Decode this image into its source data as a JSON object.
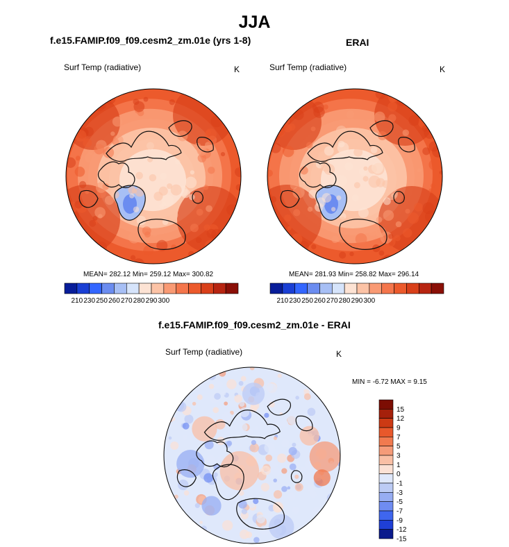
{
  "title": "JJA",
  "colors": {
    "seq": [
      "#081d99",
      "#1a3fd4",
      "#3366ff",
      "#6b8cf0",
      "#a7bff5",
      "#d6e4fb",
      "#fde3d4",
      "#fcc3a6",
      "#f99a74",
      "#f4764c",
      "#ec5a2c",
      "#d9401a",
      "#b72511",
      "#8a0f07"
    ],
    "diff": [
      "#0a1a8c",
      "#1f3fd6",
      "#3f66ef",
      "#6f8cf2",
      "#97adf3",
      "#bccbf5",
      "#dfe8fb",
      "#fbe1d5",
      "#f9bfa5",
      "#f59b79",
      "#f17a4f",
      "#e8582b",
      "#cc3a14",
      "#a5200b",
      "#7c0d03"
    ],
    "coast": "#111111"
  },
  "chart_data": [
    {
      "type": "heatmap",
      "projection": "north-polar-stereographic",
      "panel_title": "f.e15.FAMIP.f09_f09.cesm2_zm.01e (yrs 1-8)",
      "variable": "Surf Temp (radiative)",
      "units": "K",
      "stats": "MEAN= 282.12  Min= 259.12  Max= 300.82",
      "mean": 282.12,
      "min": 259.12,
      "max": 300.82,
      "colorbar": {
        "orientation": "horizontal",
        "ticks": [
          "210",
          "230",
          "250",
          "260",
          "270",
          "280",
          "290",
          "300"
        ]
      }
    },
    {
      "type": "heatmap",
      "projection": "north-polar-stereographic",
      "panel_title": "ERAI",
      "variable": "Surf Temp (radiative)",
      "units": "K",
      "stats": "MEAN= 281.93  Min= 258.82  Max= 296.14",
      "mean": 281.93,
      "min": 258.82,
      "max": 296.14,
      "colorbar": {
        "orientation": "horizontal",
        "ticks": [
          "210",
          "230",
          "250",
          "260",
          "270",
          "280",
          "290",
          "300"
        ]
      }
    },
    {
      "type": "heatmap",
      "projection": "north-polar-stereographic",
      "panel_title": "f.e15.FAMIP.f09_f09.cesm2_zm.01e - ERAI",
      "variable": "Surf Temp (radiative)",
      "units": "K",
      "stats": "MIN =  -6.72 MAX =   9.15",
      "min": -6.72,
      "max": 9.15,
      "colorbar": {
        "orientation": "vertical",
        "ticks": [
          "15",
          "12",
          "9",
          "7",
          "5",
          "3",
          "1",
          "0",
          "-1",
          "-3",
          "-5",
          "-7",
          "-9",
          "-12",
          "-15"
        ]
      }
    }
  ]
}
